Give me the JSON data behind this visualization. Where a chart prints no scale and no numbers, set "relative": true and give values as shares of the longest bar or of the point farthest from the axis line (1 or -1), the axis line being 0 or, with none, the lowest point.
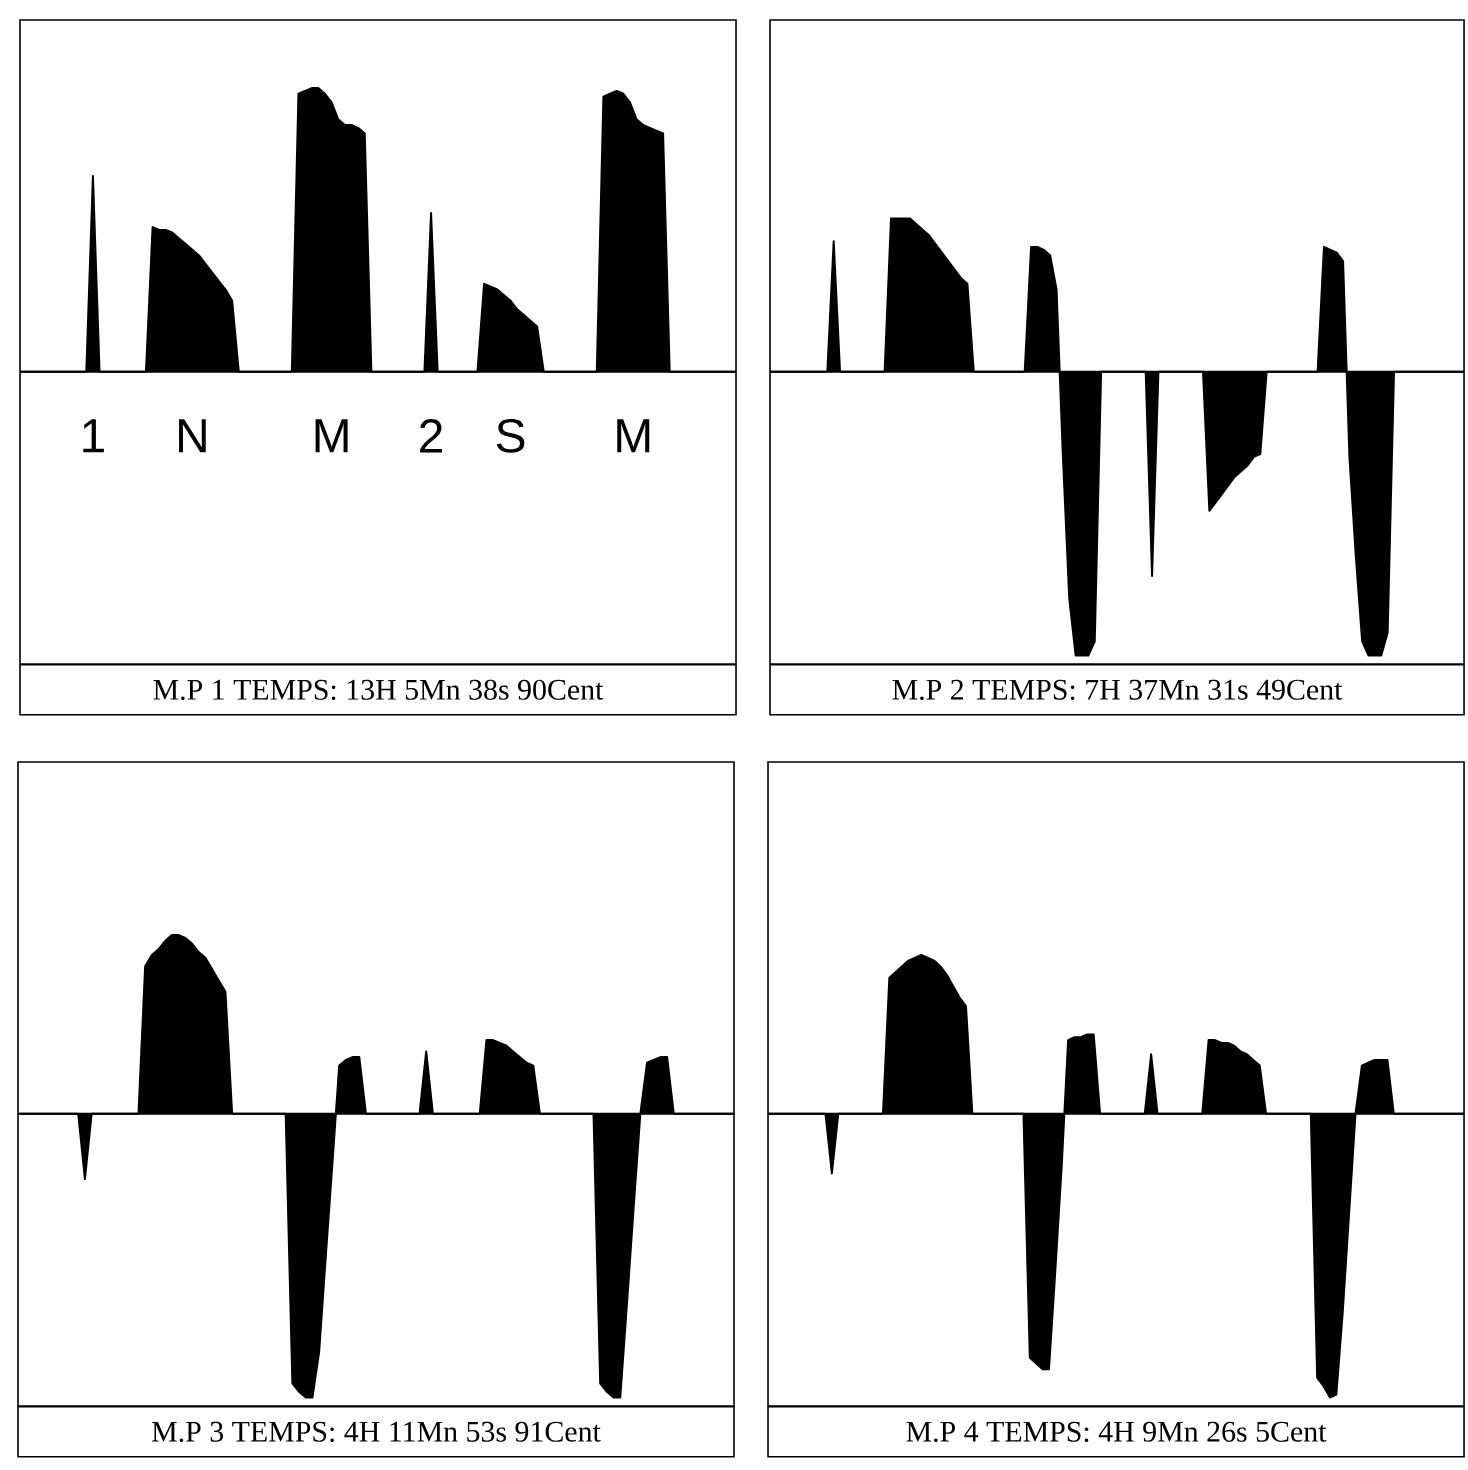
{
  "chart_data": [
    {
      "type": "area",
      "title": "M.P 1 TEMPS: 13H 5Mn 38s 90Cent",
      "relative": true,
      "tick_labels": false,
      "color": "#000000",
      "categories": [
        null,
        null,
        null,
        null,
        null,
        null,
        null,
        null,
        null,
        null,
        null,
        null,
        null,
        null,
        null,
        null,
        null,
        null,
        null,
        null,
        null,
        null,
        null,
        null,
        null,
        null,
        null,
        null,
        null,
        null,
        null,
        null,
        null,
        null,
        null,
        null,
        null,
        null,
        null,
        null,
        null,
        null,
        null,
        null,
        null,
        null,
        null,
        null,
        null,
        null,
        null,
        null,
        null,
        null,
        null,
        null,
        null,
        null,
        null,
        null,
        null,
        null,
        null,
        null,
        null,
        null,
        null,
        null,
        null,
        null,
        null,
        null,
        null,
        null,
        null,
        null,
        null,
        null,
        null,
        null,
        null,
        null,
        null,
        null,
        null,
        null,
        null,
        null,
        null,
        null,
        null,
        null,
        null,
        null,
        null,
        null,
        null,
        null,
        null,
        null,
        null,
        null,
        null,
        null,
        null,
        null,
        null,
        null,
        null
      ],
      "values": [
        0,
        0,
        0,
        0,
        0,
        0,
        0,
        0,
        0,
        0,
        0,
        0.69,
        0,
        0,
        0,
        0,
        0,
        0,
        0,
        0,
        0.51,
        0.5,
        0.5,
        0.49,
        0.47,
        0.45,
        0.43,
        0.41,
        0.38,
        0.35,
        0.32,
        0.29,
        0.25,
        0,
        0,
        0,
        0,
        0,
        0,
        0,
        0,
        0,
        0.98,
        0.99,
        1,
        1,
        0.98,
        0.95,
        0.89,
        0.87,
        0.87,
        0.86,
        0.84,
        0,
        0,
        0,
        0,
        0,
        0,
        0,
        0,
        0,
        0.56,
        0,
        0,
        0,
        0,
        0,
        0,
        0,
        0.31,
        0.3,
        0.29,
        0.27,
        0.25,
        0.22,
        0.2,
        0.18,
        0.16,
        0,
        0,
        0,
        0,
        0,
        0,
        0,
        0,
        0,
        0.97,
        0.98,
        0.99,
        0.98,
        0.95,
        0.89,
        0.87,
        0.86,
        0.85,
        0.84,
        0,
        0,
        0,
        0,
        0,
        0,
        0,
        0,
        0,
        0,
        0
      ],
      "annotations": [
        "1",
        "N",
        "M",
        "2",
        "S",
        "M"
      ]
    },
    {
      "type": "area",
      "title": "M.P 2 TEMPS: 7H 37Mn 31s 49Cent",
      "relative": true,
      "tick_labels": false,
      "color": "#000000",
      "categories": [
        null,
        null,
        null,
        null,
        null,
        null,
        null,
        null,
        null,
        null,
        null,
        null,
        null,
        null,
        null,
        null,
        null,
        null,
        null,
        null,
        null,
        null,
        null,
        null,
        null,
        null,
        null,
        null,
        null,
        null,
        null,
        null,
        null,
        null,
        null,
        null,
        null,
        null,
        null,
        null,
        null,
        null,
        null,
        null,
        null,
        null,
        null,
        null,
        null,
        null,
        null,
        null,
        null,
        null,
        null,
        null,
        null,
        null,
        null,
        null,
        null,
        null,
        null,
        null,
        null,
        null,
        null,
        null,
        null,
        null,
        null,
        null,
        null,
        null,
        null,
        null,
        null,
        null,
        null,
        null,
        null,
        null,
        null,
        null,
        null,
        null,
        null,
        null,
        null,
        null,
        null,
        null,
        null,
        null,
        null,
        null,
        null,
        null,
        null,
        null,
        null,
        null,
        null,
        null,
        null,
        null,
        null,
        null,
        null,
        null
      ],
      "values": [
        0,
        0,
        0,
        0,
        0,
        0,
        0,
        0,
        0,
        0,
        0.46,
        0,
        0,
        0,
        0,
        0,
        0,
        0,
        0,
        0.54,
        0.54,
        0.54,
        0.54,
        0.52,
        0.5,
        0.48,
        0.45,
        0.42,
        0.39,
        0.36,
        0.33,
        0.31,
        0,
        0,
        0,
        0,
        0,
        0,
        0,
        0,
        0,
        0.44,
        0.44,
        0.43,
        0.41,
        0.29,
        -0.3,
        -0.8,
        -1,
        -1,
        -1,
        -0.95,
        0,
        0,
        0,
        0,
        0,
        0,
        0,
        0,
        -0.72,
        0,
        0,
        0,
        0,
        0,
        0,
        0,
        0,
        -0.49,
        -0.46,
        -0.43,
        -0.4,
        -0.37,
        -0.35,
        -0.33,
        -0.3,
        -0.29,
        0,
        0,
        0,
        0,
        0,
        0,
        0,
        0,
        0,
        0.44,
        0.43,
        0.42,
        0.39,
        -0.3,
        -0.65,
        -0.95,
        -1,
        -1,
        -1,
        -0.92,
        0,
        0,
        0,
        0,
        0,
        0,
        0,
        0,
        0,
        0,
        0,
        0
      ]
    },
    {
      "type": "area",
      "title": "M.P 3 TEMPS: 4H 11Mn 53s 91Cent",
      "relative": true,
      "tick_labels": false,
      "color": "#000000",
      "categories": [
        null,
        null,
        null,
        null,
        null,
        null,
        null,
        null,
        null,
        null,
        null,
        null,
        null,
        null,
        null,
        null,
        null,
        null,
        null,
        null,
        null,
        null,
        null,
        null,
        null,
        null,
        null,
        null,
        null,
        null,
        null,
        null,
        null,
        null,
        null,
        null,
        null,
        null,
        null,
        null,
        null,
        null,
        null,
        null,
        null,
        null,
        null,
        null,
        null,
        null,
        null,
        null,
        null,
        null,
        null,
        null,
        null,
        null,
        null,
        null,
        null,
        null,
        null,
        null,
        null,
        null,
        null,
        null,
        null,
        null,
        null,
        null,
        null,
        null,
        null,
        null,
        null,
        null,
        null,
        null,
        null,
        null,
        null,
        null,
        null,
        null,
        null,
        null,
        null,
        null,
        null,
        null,
        null,
        null,
        null,
        null,
        null,
        null,
        null,
        null,
        null,
        null,
        null,
        null,
        null,
        null,
        null,
        null
      ],
      "values": [
        0,
        0,
        0,
        0,
        0,
        0,
        0,
        0,
        0,
        0,
        -0.23,
        0,
        0,
        0,
        0,
        0,
        0,
        0,
        0,
        0.52,
        0.56,
        0.58,
        0.61,
        0.63,
        0.63,
        0.62,
        0.6,
        0.57,
        0.55,
        0.51,
        0.47,
        0.43,
        0,
        0,
        0,
        0,
        0,
        0,
        0,
        0,
        0,
        -0.95,
        -0.98,
        -1,
        -1,
        -0.84,
        -0.5,
        -0.17,
        0.17,
        0.19,
        0.2,
        0.2,
        0,
        0,
        0,
        0,
        0,
        0,
        0,
        0,
        0,
        0.22,
        0,
        0,
        0,
        0,
        0,
        0,
        0,
        0,
        0.26,
        0.26,
        0.25,
        0.24,
        0.22,
        0.2,
        0.18,
        0.17,
        0,
        0,
        0,
        0,
        0,
        0,
        0,
        0,
        0,
        -0.95,
        -0.98,
        -1,
        -1,
        -0.67,
        -0.33,
        0,
        0.18,
        0.19,
        0.2,
        0.2,
        0,
        0,
        0,
        0,
        0,
        0,
        0,
        0,
        0,
        0
      ]
    },
    {
      "type": "area",
      "title": "M.P 4 TEMPS: 4H 9Mn 26s 5Cent",
      "relative": true,
      "tick_labels": false,
      "color": "#000000",
      "categories": [
        null,
        null,
        null,
        null,
        null,
        null,
        null,
        null,
        null,
        null,
        null,
        null,
        null,
        null,
        null,
        null,
        null,
        null,
        null,
        null,
        null,
        null,
        null,
        null,
        null,
        null,
        null,
        null,
        null,
        null,
        null,
        null,
        null,
        null,
        null,
        null,
        null,
        null,
        null,
        null,
        null,
        null,
        null,
        null,
        null,
        null,
        null,
        null,
        null,
        null,
        null,
        null,
        null,
        null,
        null,
        null,
        null,
        null,
        null,
        null,
        null,
        null,
        null,
        null,
        null,
        null,
        null,
        null,
        null,
        null,
        null,
        null,
        null,
        null,
        null,
        null,
        null,
        null,
        null,
        null,
        null,
        null,
        null,
        null,
        null,
        null,
        null,
        null,
        null,
        null,
        null,
        null,
        null,
        null,
        null,
        null,
        null,
        null,
        null,
        null,
        null,
        null,
        null,
        null,
        null,
        null,
        null,
        null,
        null,
        null
      ],
      "values": [
        0,
        0,
        0,
        0,
        0,
        0,
        0,
        0,
        0,
        0,
        -0.21,
        0,
        0,
        0,
        0,
        0,
        0,
        0,
        0,
        0.48,
        0.5,
        0.52,
        0.54,
        0.55,
        0.56,
        0.55,
        0.54,
        0.52,
        0.49,
        0.45,
        0.41,
        0.38,
        0,
        0,
        0,
        0,
        0,
        0,
        0,
        0,
        0,
        -0.86,
        -0.88,
        -0.9,
        -0.9,
        -0.55,
        -0.18,
        0.26,
        0.27,
        0.27,
        0.28,
        0.28,
        0,
        0,
        0,
        0,
        0,
        0,
        0,
        0,
        0.21,
        0,
        0,
        0,
        0,
        0,
        0,
        0,
        0,
        0.26,
        0.26,
        0.25,
        0.25,
        0.24,
        0.22,
        0.21,
        0.19,
        0.17,
        0,
        0,
        0,
        0,
        0,
        0,
        0,
        0,
        -0.93,
        -0.96,
        -1,
        -0.99,
        -0.7,
        -0.35,
        0,
        0.17,
        0.18,
        0.19,
        0.19,
        0.19,
        0,
        0,
        0,
        0,
        0,
        0,
        0,
        0,
        0,
        0,
        0,
        0
      ]
    }
  ]
}
